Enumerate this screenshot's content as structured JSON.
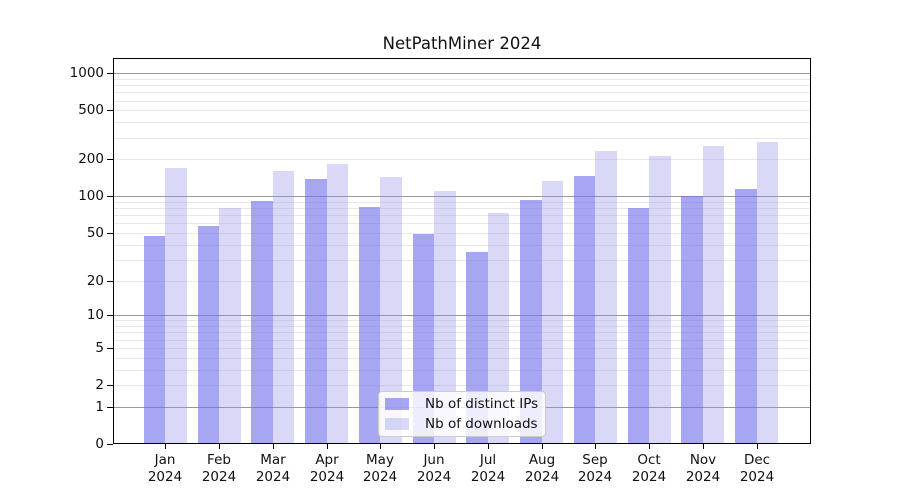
{
  "chart_data": {
    "type": "bar",
    "title": "NetPathMiner 2024",
    "categories": [
      "Jan",
      "Feb",
      "Mar",
      "Apr",
      "May",
      "Jun",
      "Jul",
      "Aug",
      "Sep",
      "Oct",
      "Nov",
      "Dec"
    ],
    "x_tick_year": "2024",
    "series": [
      {
        "name": "Nb of distinct IPs",
        "color": "rgba(112,112,234,0.62)",
        "color_solid": "#a6a6f2",
        "values": [
          47,
          57,
          92,
          138,
          82,
          49,
          35,
          93,
          148,
          80,
          101,
          114
        ]
      },
      {
        "name": "Nb of downloads",
        "color": "rgba(146,146,232,0.35)",
        "color_solid": "#d9d9f7",
        "values": [
          169,
          81,
          160,
          183,
          143,
          111,
          73,
          133,
          234,
          213,
          256,
          279
        ]
      }
    ],
    "y_scale": "log10(1+x)",
    "y_ticks": [
      1000,
      500,
      200,
      100,
      50,
      20,
      10,
      5,
      2,
      1,
      0
    ],
    "ylim": [
      0,
      1300
    ],
    "grid": {
      "orientation": "horizontal",
      "major_values": [
        1,
        10,
        100,
        1000
      ],
      "minor_values_per_decade": [
        2,
        3,
        4,
        5,
        6,
        7,
        8,
        9
      ],
      "major_color": "#999999",
      "minor_color": "#e8e8e8"
    },
    "legend_position": "inside-bottom-center"
  }
}
